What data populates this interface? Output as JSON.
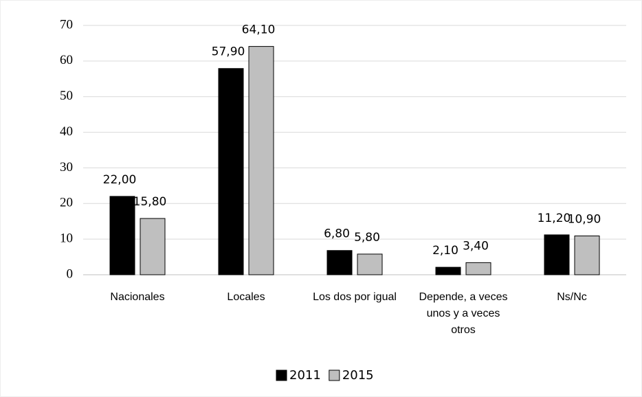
{
  "chart_data": {
    "type": "bar",
    "categories": [
      "Nacionales",
      "Locales",
      "Los dos por igual",
      "Depende, a veces unos y a veces otros",
      "Ns/Nc"
    ],
    "series": [
      {
        "name": "2011",
        "color": "#000000",
        "values": [
          22.0,
          57.9,
          6.8,
          2.1,
          11.2
        ],
        "value_labels": [
          "22,00",
          "57,90",
          "6,80",
          "2,10",
          "11,20"
        ]
      },
      {
        "name": "2015",
        "color": "#bfbfbf",
        "values": [
          15.8,
          64.1,
          5.8,
          3.4,
          10.9
        ],
        "value_labels": [
          "15,80",
          "64,10",
          "5,80",
          "3,40",
          "10,90"
        ]
      }
    ],
    "ylim": [
      0,
      70
    ],
    "yticks": [
      0,
      10,
      20,
      30,
      40,
      50,
      60,
      70
    ],
    "grid": true,
    "legend": "bottom"
  }
}
